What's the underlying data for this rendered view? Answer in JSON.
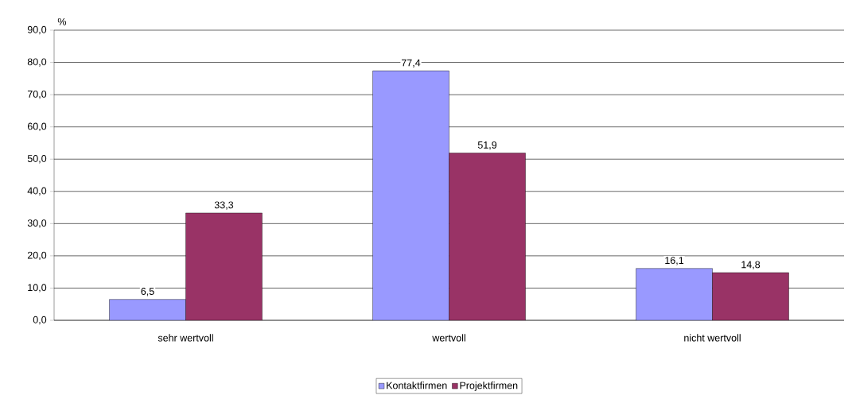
{
  "chart_data": {
    "type": "bar",
    "ylabel": "%",
    "categories": [
      "sehr wertvoll",
      "wertvoll",
      "nicht wertvoll"
    ],
    "series": [
      {
        "name": "Kontaktfirmen",
        "color": "#9999ff",
        "values": [
          6.5,
          77.4,
          16.1
        ],
        "value_labels": [
          "6,5",
          "77,4",
          "16,1"
        ]
      },
      {
        "name": "Projektfirmen",
        "color": "#993366",
        "values": [
          33.3,
          51.9,
          14.8
        ],
        "value_labels": [
          "33,3",
          "51,9",
          "14,8"
        ]
      }
    ],
    "ylim": [
      0,
      90
    ],
    "yticks": [
      {
        "value": 0,
        "label": "0,0"
      },
      {
        "value": 10,
        "label": "10,0"
      },
      {
        "value": 20,
        "label": "20,0"
      },
      {
        "value": 30,
        "label": "30,0"
      },
      {
        "value": 40,
        "label": "40,0"
      },
      {
        "value": 50,
        "label": "50,0"
      },
      {
        "value": 60,
        "label": "60,0"
      },
      {
        "value": 70,
        "label": "70,0"
      },
      {
        "value": 80,
        "label": "80,0"
      },
      {
        "value": 90,
        "label": "90,0"
      }
    ],
    "grid": "y",
    "legend": "bottom"
  }
}
